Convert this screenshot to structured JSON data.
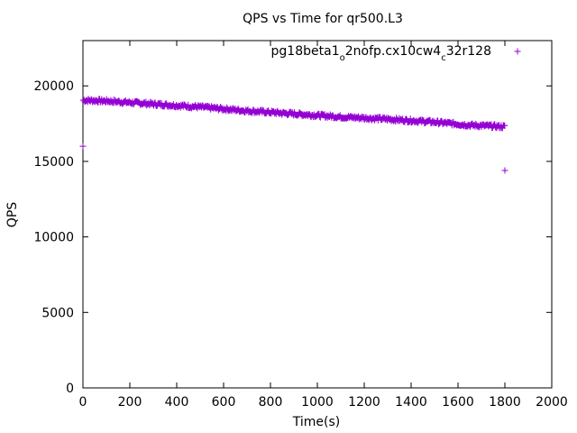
{
  "chart_data": {
    "type": "scatter",
    "title": "QPS vs Time for qr500.L3",
    "xlabel": "Time(s)",
    "ylabel": "QPS",
    "xlim": [
      0,
      2000
    ],
    "ylim": [
      0,
      23000
    ],
    "xticks": [
      0,
      200,
      400,
      600,
      800,
      1000,
      1200,
      1400,
      1600,
      1800,
      2000
    ],
    "yticks": [
      0,
      5000,
      10000,
      15000,
      20000
    ],
    "grid": false,
    "legend": {
      "position": "top-right"
    },
    "series": [
      {
        "name_parts": [
          {
            "text": "pg18beta1",
            "sub": false
          },
          {
            "text": "o",
            "sub": true
          },
          {
            "text": "2nofp.cx10cw4",
            "sub": false
          },
          {
            "text": "c",
            "sub": true
          },
          {
            "text": "32r128",
            "sub": false
          }
        ],
        "color": "#9400d3",
        "marker": "plus",
        "trend": {
          "x": [
            0,
            100,
            300,
            500,
            700,
            900,
            1100,
            1300,
            1500,
            1650,
            1800
          ],
          "y": [
            19050,
            19000,
            18800,
            18600,
            18350,
            18150,
            17950,
            17800,
            17600,
            17400,
            17300
          ]
        },
        "band": 120,
        "outliers": [
          {
            "x": 0,
            "y": 16000
          },
          {
            "x": 1800,
            "y": 14400
          }
        ]
      }
    ]
  }
}
